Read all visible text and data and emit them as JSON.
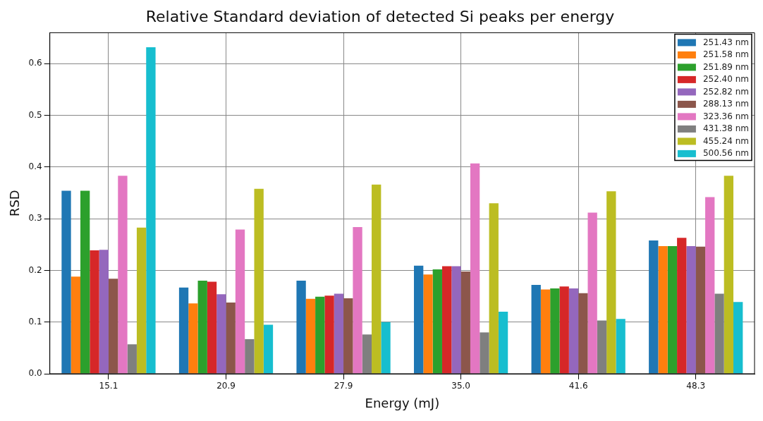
{
  "chart_data": {
    "type": "bar",
    "title": "Relative Standard deviation of detected Si peaks per energy",
    "xlabel": "Energy (mJ)",
    "ylabel": "RSD",
    "categories": [
      "15.1",
      "20.9",
      "27.9",
      "35.0",
      "41.6",
      "48.3"
    ],
    "series": [
      {
        "name": "251.43 nm",
        "color": "#1f77b4",
        "values": [
          0.354,
          0.167,
          0.18,
          0.209,
          0.172,
          0.258
        ]
      },
      {
        "name": "251.58 nm",
        "color": "#ff7f0e",
        "values": [
          0.188,
          0.136,
          0.145,
          0.192,
          0.163,
          0.247
        ]
      },
      {
        "name": "251.89 nm",
        "color": "#2ca02c",
        "values": [
          0.354,
          0.18,
          0.149,
          0.202,
          0.165,
          0.247
        ]
      },
      {
        "name": "252.40 nm",
        "color": "#d62728",
        "values": [
          0.239,
          0.178,
          0.151,
          0.208,
          0.169,
          0.263
        ]
      },
      {
        "name": "252.82 nm",
        "color": "#9467bd",
        "values": [
          0.24,
          0.154,
          0.155,
          0.208,
          0.165,
          0.247
        ]
      },
      {
        "name": "288.13 nm",
        "color": "#8c564b",
        "values": [
          0.184,
          0.138,
          0.146,
          0.198,
          0.156,
          0.246
        ]
      },
      {
        "name": "323.36 nm",
        "color": "#e377c2",
        "values": [
          0.383,
          0.279,
          0.284,
          0.407,
          0.312,
          0.342
        ]
      },
      {
        "name": "431.38 nm",
        "color": "#7f7f7f",
        "values": [
          0.057,
          0.067,
          0.076,
          0.08,
          0.103,
          0.155
        ]
      },
      {
        "name": "455.24 nm",
        "color": "#bcbd22",
        "values": [
          0.283,
          0.358,
          0.366,
          0.33,
          0.353,
          0.383
        ]
      },
      {
        "name": "500.56 nm",
        "color": "#17becf",
        "values": [
          0.632,
          0.095,
          0.1,
          0.12,
          0.106,
          0.139
        ]
      }
    ],
    "ylim": [
      0,
      0.66
    ],
    "yticks": [
      {
        "value": 0,
        "label": "0.0"
      },
      0.1,
      0.2,
      0.3,
      0.4,
      0.5,
      0.6
    ],
    "grid": true,
    "legend": "top right"
  }
}
